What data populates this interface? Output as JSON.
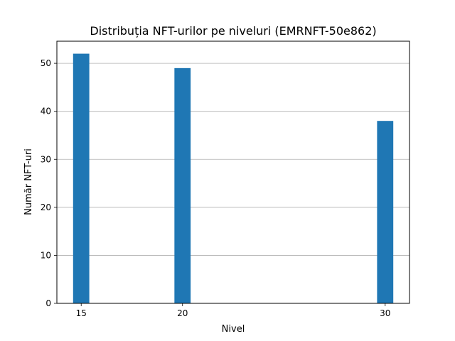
{
  "chart_data": {
    "type": "bar",
    "title": "Distribuția NFT-urilor pe niveluri (EMRNFT-50e862)",
    "xlabel": "Nivel",
    "ylabel": "Număr NFT-uri",
    "x": [
      15,
      20,
      30
    ],
    "values": [
      52,
      49,
      38
    ],
    "bar_width": 0.8,
    "xlim": [
      13.8,
      31.2
    ],
    "ylim": [
      0,
      54.6
    ],
    "xticks": [
      15,
      20,
      30
    ],
    "yticks": [
      0,
      10,
      20,
      30,
      40,
      50
    ],
    "grid": "horizontal",
    "legend": "none",
    "bar_color": "#1f77b4",
    "grid_color": "#b0b0b0"
  }
}
